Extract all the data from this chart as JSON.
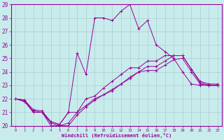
{
  "xlabel": "Windchill (Refroidissement éolien,°C)",
  "ylabel": "",
  "xlim": [
    -0.5,
    23.5
  ],
  "ylim": [
    20,
    29
  ],
  "xticks": [
    0,
    1,
    2,
    3,
    4,
    5,
    6,
    7,
    8,
    9,
    10,
    11,
    12,
    13,
    14,
    15,
    16,
    17,
    18,
    19,
    20,
    21,
    22,
    23
  ],
  "yticks": [
    20,
    21,
    22,
    23,
    24,
    25,
    26,
    27,
    28,
    29
  ],
  "bg_color": "#c8ecec",
  "line_color": "#990099",
  "grid_color": "#aacccc",
  "series": [
    {
      "x": [
        0,
        1,
        2,
        3,
        4,
        5,
        6,
        7,
        8,
        9,
        10,
        11,
        12,
        13,
        14,
        15,
        16,
        17,
        18,
        19,
        20,
        21,
        22,
        23
      ],
      "y": [
        22,
        21.9,
        21,
        21,
        20.3,
        20.1,
        21,
        25.4,
        23.8,
        28,
        28,
        27.8,
        28.5,
        29,
        27.2,
        27.8,
        26,
        25.5,
        25,
        24,
        23.1,
        23,
        23,
        23
      ]
    },
    {
      "x": [
        0,
        1,
        2,
        3,
        4,
        5,
        6,
        7,
        8,
        9,
        10,
        11,
        12,
        13,
        14,
        15,
        16,
        17,
        18,
        19,
        20,
        21,
        22,
        23
      ],
      "y": [
        22,
        21.9,
        21.2,
        21.1,
        20.3,
        20.1,
        21.0,
        21.0,
        22,
        22.2,
        22.8,
        23.3,
        23.8,
        24.3,
        24.3,
        24.8,
        24.8,
        25.2,
        25.2,
        25.2,
        24.2,
        23.3,
        23.1,
        23.1
      ]
    },
    {
      "x": [
        0,
        1,
        2,
        3,
        4,
        5,
        6,
        7,
        8,
        9,
        10,
        11,
        12,
        13,
        14,
        15,
        16,
        17,
        18,
        19,
        20,
        21,
        22,
        23
      ],
      "y": [
        22,
        21.8,
        21.1,
        21.0,
        20.2,
        20.0,
        20.2,
        21.0,
        21.5,
        22.0,
        22.3,
        22.6,
        23.1,
        23.6,
        24.0,
        24.4,
        24.4,
        24.8,
        25.2,
        25.2,
        24.2,
        23.2,
        23.0,
        23.0
      ]
    },
    {
      "x": [
        0,
        1,
        2,
        3,
        4,
        5,
        6,
        7,
        8,
        9,
        10,
        11,
        12,
        13,
        14,
        15,
        16,
        17,
        18,
        19,
        20,
        21,
        22,
        23
      ],
      "y": [
        22,
        21.8,
        21.0,
        21.0,
        20.0,
        20.0,
        20.0,
        20.8,
        21.4,
        21.9,
        22.3,
        22.7,
        23.1,
        23.5,
        24.0,
        24.1,
        24.1,
        24.5,
        24.9,
        25.0,
        24.0,
        23.1,
        23.0,
        23.0
      ]
    }
  ]
}
